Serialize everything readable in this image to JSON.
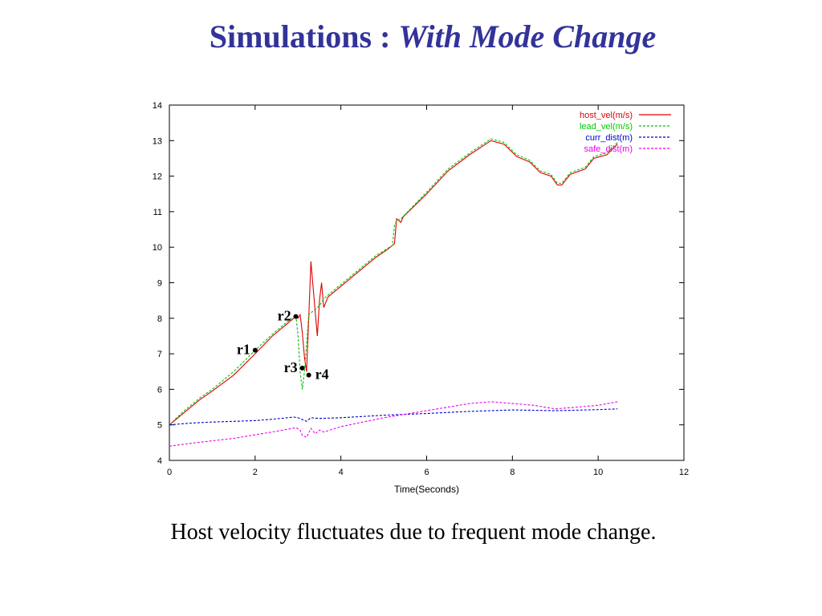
{
  "slide": {
    "title_plain": "Simulations : ",
    "title_italic": "With Mode Change",
    "caption": "Host velocity fluctuates due to frequent mode change."
  },
  "chart_data": {
    "type": "line",
    "xlabel": "Time(Seconds)",
    "ylabel": "",
    "xlim": [
      0,
      12
    ],
    "ylim": [
      4,
      14
    ],
    "xticks": [
      0,
      2,
      4,
      6,
      8,
      10,
      12
    ],
    "yticks": [
      4,
      5,
      6,
      7,
      8,
      9,
      10,
      11,
      12,
      13,
      14
    ],
    "grid": false,
    "legend_position": "top-right",
    "series": [
      {
        "name": "host_vel(m/s)",
        "color": "#e00000",
        "dash": "solid",
        "points": [
          [
            0,
            5.0
          ],
          [
            0.3,
            5.3
          ],
          [
            0.7,
            5.7
          ],
          [
            1.0,
            5.95
          ],
          [
            1.5,
            6.4
          ],
          [
            2.0,
            7.0
          ],
          [
            2.4,
            7.5
          ],
          [
            2.7,
            7.8
          ],
          [
            2.95,
            8.05
          ],
          [
            3.0,
            8.0
          ],
          [
            3.05,
            8.1
          ],
          [
            3.1,
            7.6
          ],
          [
            3.15,
            6.9
          ],
          [
            3.2,
            6.5
          ],
          [
            3.25,
            8.0
          ],
          [
            3.3,
            9.6
          ],
          [
            3.4,
            8.2
          ],
          [
            3.45,
            7.5
          ],
          [
            3.5,
            8.5
          ],
          [
            3.55,
            9.0
          ],
          [
            3.6,
            8.3
          ],
          [
            3.7,
            8.6
          ],
          [
            3.9,
            8.8
          ],
          [
            4.3,
            9.2
          ],
          [
            4.8,
            9.7
          ],
          [
            5.1,
            9.95
          ],
          [
            5.25,
            10.1
          ],
          [
            5.3,
            10.8
          ],
          [
            5.4,
            10.7
          ],
          [
            5.45,
            10.85
          ],
          [
            6.0,
            11.5
          ],
          [
            6.5,
            12.15
          ],
          [
            7.0,
            12.6
          ],
          [
            7.5,
            13.0
          ],
          [
            7.8,
            12.9
          ],
          [
            8.1,
            12.55
          ],
          [
            8.4,
            12.4
          ],
          [
            8.65,
            12.1
          ],
          [
            8.9,
            12.0
          ],
          [
            9.05,
            11.75
          ],
          [
            9.15,
            11.75
          ],
          [
            9.35,
            12.05
          ],
          [
            9.7,
            12.2
          ],
          [
            9.9,
            12.5
          ],
          [
            10.2,
            12.6
          ],
          [
            10.45,
            12.9
          ]
        ]
      },
      {
        "name": "lead_vel(m/s)",
        "color": "#00c800",
        "dash": "dashed",
        "points": [
          [
            0,
            5.0
          ],
          [
            0.3,
            5.35
          ],
          [
            0.7,
            5.75
          ],
          [
            1.0,
            6.0
          ],
          [
            1.5,
            6.5
          ],
          [
            2.0,
            7.1
          ],
          [
            2.4,
            7.55
          ],
          [
            2.7,
            7.85
          ],
          [
            2.95,
            8.1
          ],
          [
            3.0,
            7.5
          ],
          [
            3.05,
            6.5
          ],
          [
            3.1,
            6.0
          ],
          [
            3.15,
            6.5
          ],
          [
            3.25,
            8.1
          ],
          [
            3.35,
            8.2
          ],
          [
            3.5,
            8.35
          ],
          [
            3.6,
            8.55
          ],
          [
            3.9,
            8.85
          ],
          [
            4.3,
            9.25
          ],
          [
            4.8,
            9.75
          ],
          [
            5.2,
            10.05
          ],
          [
            5.25,
            10.6
          ],
          [
            5.3,
            10.75
          ],
          [
            5.4,
            10.8
          ],
          [
            6.0,
            11.55
          ],
          [
            6.5,
            12.2
          ],
          [
            7.0,
            12.65
          ],
          [
            7.5,
            13.05
          ],
          [
            7.8,
            12.95
          ],
          [
            8.1,
            12.6
          ],
          [
            8.4,
            12.45
          ],
          [
            8.65,
            12.15
          ],
          [
            8.9,
            12.05
          ],
          [
            9.05,
            11.8
          ],
          [
            9.15,
            11.8
          ],
          [
            9.35,
            12.1
          ],
          [
            9.7,
            12.25
          ],
          [
            9.9,
            12.55
          ],
          [
            10.2,
            12.65
          ],
          [
            10.45,
            12.95
          ]
        ]
      },
      {
        "name": "curr_dist(m)",
        "color": "#0000cc",
        "dash": "dashed",
        "points": [
          [
            0,
            5.0
          ],
          [
            0.5,
            5.05
          ],
          [
            1.0,
            5.08
          ],
          [
            1.5,
            5.1
          ],
          [
            2.0,
            5.12
          ],
          [
            2.5,
            5.17
          ],
          [
            2.9,
            5.22
          ],
          [
            3.0,
            5.2
          ],
          [
            3.1,
            5.15
          ],
          [
            3.2,
            5.1
          ],
          [
            3.3,
            5.2
          ],
          [
            3.5,
            5.18
          ],
          [
            4.0,
            5.2
          ],
          [
            5.0,
            5.27
          ],
          [
            6.0,
            5.32
          ],
          [
            7.0,
            5.38
          ],
          [
            8.0,
            5.42
          ],
          [
            9.0,
            5.4
          ],
          [
            10.0,
            5.43
          ],
          [
            10.45,
            5.45
          ]
        ]
      },
      {
        "name": "safe_dist(m)",
        "color": "#ee00ee",
        "dash": "dashed",
        "points": [
          [
            0,
            4.4
          ],
          [
            0.5,
            4.48
          ],
          [
            1.0,
            4.55
          ],
          [
            1.5,
            4.62
          ],
          [
            2.0,
            4.72
          ],
          [
            2.5,
            4.82
          ],
          [
            2.95,
            4.92
          ],
          [
            3.05,
            4.85
          ],
          [
            3.1,
            4.7
          ],
          [
            3.2,
            4.65
          ],
          [
            3.3,
            4.9
          ],
          [
            3.4,
            4.75
          ],
          [
            3.5,
            4.85
          ],
          [
            3.6,
            4.8
          ],
          [
            4.0,
            4.95
          ],
          [
            5.0,
            5.2
          ],
          [
            6.0,
            5.4
          ],
          [
            7.0,
            5.6
          ],
          [
            7.5,
            5.65
          ],
          [
            8.0,
            5.6
          ],
          [
            8.5,
            5.55
          ],
          [
            9.0,
            5.45
          ],
          [
            9.5,
            5.5
          ],
          [
            10.0,
            5.55
          ],
          [
            10.45,
            5.65
          ]
        ]
      }
    ],
    "annotations": [
      {
        "label": "r1",
        "x": 2.0,
        "y": 7.1,
        "side": "left"
      },
      {
        "label": "r2",
        "x": 2.95,
        "y": 8.05,
        "side": "left"
      },
      {
        "label": "r3",
        "x": 3.1,
        "y": 6.6,
        "side": "left"
      },
      {
        "label": "r4",
        "x": 3.25,
        "y": 6.4,
        "side": "right"
      }
    ]
  }
}
